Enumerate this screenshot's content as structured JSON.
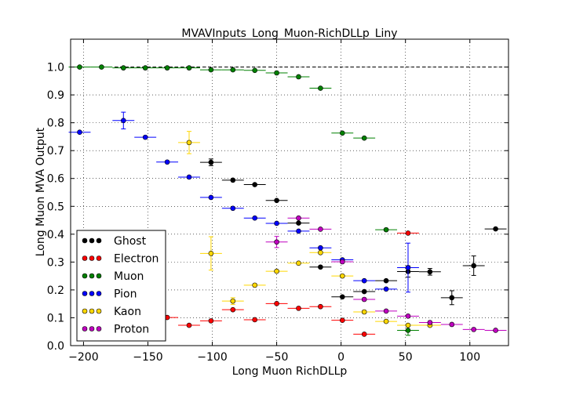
{
  "chart_data": {
    "type": "scatter",
    "title": "MVAVInputs_Long_Muon-RichDLLp_Liny",
    "xlabel": "Long Muon RichDLLp",
    "ylabel": "Long Muon MVA Output",
    "xlim": [
      -210,
      130
    ],
    "ylim": [
      0.0,
      1.1
    ],
    "xticks": [
      -200,
      -150,
      -100,
      -50,
      0,
      50,
      100
    ],
    "xtick_labels": [
      "−200",
      "−150",
      "−100",
      "−50",
      "0",
      "50",
      "100"
    ],
    "yticks": [
      0.0,
      0.1,
      0.2,
      0.3,
      0.4,
      0.5,
      0.6,
      0.7,
      0.8,
      0.9,
      1.0
    ],
    "ytick_labels": [
      "0.0",
      "0.1",
      "0.2",
      "0.3",
      "0.4",
      "0.5",
      "0.6",
      "0.7",
      "0.8",
      "0.9",
      "1.0"
    ],
    "grid": true,
    "reference_line_y": 1.0,
    "legend_position": "lower-left",
    "bin_half_width": 8.5,
    "series": [
      {
        "name": "Ghost",
        "color": "#000000",
        "points": [
          {
            "x": -101,
            "y": 0.658,
            "yerr": 0.012
          },
          {
            "x": -84,
            "y": 0.594,
            "yerr": 0.005
          },
          {
            "x": -67,
            "y": 0.578,
            "yerr": 0.005
          },
          {
            "x": -50,
            "y": 0.521,
            "yerr": 0.005
          },
          {
            "x": -33,
            "y": 0.44,
            "yerr": 0.005
          },
          {
            "x": -16,
            "y": 0.282,
            "yerr": 0.005
          },
          {
            "x": 1,
            "y": 0.175,
            "yerr": 0.005
          },
          {
            "x": 18,
            "y": 0.194,
            "yerr": 0.005
          },
          {
            "x": 35,
            "y": 0.233,
            "yerr": 0.005
          },
          {
            "x": 52,
            "y": 0.266,
            "yerr": 0.02
          },
          {
            "x": 69,
            "y": 0.265,
            "yerr": 0.012
          },
          {
            "x": 86,
            "y": 0.172,
            "yerr": 0.025
          },
          {
            "x": 103,
            "y": 0.287,
            "yerr": 0.035
          },
          {
            "x": 120,
            "y": 0.419,
            "yerr": 0.005
          }
        ]
      },
      {
        "name": "Electron",
        "color": "#ff0000",
        "points": [
          {
            "x": -135,
            "y": 0.101,
            "yerr": 0.003
          },
          {
            "x": -118,
            "y": 0.073,
            "yerr": 0.003
          },
          {
            "x": -101,
            "y": 0.089,
            "yerr": 0.003
          },
          {
            "x": -84,
            "y": 0.129,
            "yerr": 0.003
          },
          {
            "x": -67,
            "y": 0.093,
            "yerr": 0.003
          },
          {
            "x": -50,
            "y": 0.151,
            "yerr": 0.003
          },
          {
            "x": -33,
            "y": 0.134,
            "yerr": 0.003
          },
          {
            "x": -16,
            "y": 0.14,
            "yerr": 0.003
          },
          {
            "x": 1,
            "y": 0.091,
            "yerr": 0.003
          },
          {
            "x": 18,
            "y": 0.041,
            "yerr": 0.003
          },
          {
            "x": 52,
            "y": 0.404,
            "yerr": 0.003
          }
        ]
      },
      {
        "name": "Muon",
        "color": "#008000",
        "points": [
          {
            "x": -203,
            "y": 1.0,
            "yerr": 0.002
          },
          {
            "x": -186,
            "y": 1.0,
            "yerr": 0.002
          },
          {
            "x": -169,
            "y": 0.997,
            "yerr": 0.002
          },
          {
            "x": -152,
            "y": 0.997,
            "yerr": 0.002
          },
          {
            "x": -135,
            "y": 0.997,
            "yerr": 0.002
          },
          {
            "x": -118,
            "y": 0.997,
            "yerr": 0.002
          },
          {
            "x": -101,
            "y": 0.99,
            "yerr": 0.002
          },
          {
            "x": -84,
            "y": 0.99,
            "yerr": 0.002
          },
          {
            "x": -67,
            "y": 0.988,
            "yerr": 0.002
          },
          {
            "x": -50,
            "y": 0.979,
            "yerr": 0.002
          },
          {
            "x": -33,
            "y": 0.965,
            "yerr": 0.002
          },
          {
            "x": -16,
            "y": 0.924,
            "yerr": 0.002
          },
          {
            "x": 1,
            "y": 0.763,
            "yerr": 0.003
          },
          {
            "x": 18,
            "y": 0.745,
            "yerr": 0.003
          },
          {
            "x": 35,
            "y": 0.416,
            "yerr": 0.003
          },
          {
            "x": 52,
            "y": 0.055,
            "yerr": 0.018
          }
        ]
      },
      {
        "name": "Pion",
        "color": "#0000ff",
        "points": [
          {
            "x": -203,
            "y": 0.766,
            "yerr": 0.004
          },
          {
            "x": -169,
            "y": 0.808,
            "yerr": 0.03
          },
          {
            "x": -152,
            "y": 0.748,
            "yerr": 0.004
          },
          {
            "x": -135,
            "y": 0.659,
            "yerr": 0.004
          },
          {
            "x": -118,
            "y": 0.605,
            "yerr": 0.004
          },
          {
            "x": -101,
            "y": 0.532,
            "yerr": 0.004
          },
          {
            "x": -84,
            "y": 0.493,
            "yerr": 0.004
          },
          {
            "x": -67,
            "y": 0.458,
            "yerr": 0.004
          },
          {
            "x": -50,
            "y": 0.439,
            "yerr": 0.004
          },
          {
            "x": -33,
            "y": 0.411,
            "yerr": 0.004
          },
          {
            "x": -16,
            "y": 0.351,
            "yerr": 0.004
          },
          {
            "x": 1,
            "y": 0.308,
            "yerr": 0.004
          },
          {
            "x": 18,
            "y": 0.233,
            "yerr": 0.004
          },
          {
            "x": 35,
            "y": 0.203,
            "yerr": 0.004
          },
          {
            "x": 52,
            "y": 0.28,
            "yerr": 0.088
          }
        ]
      },
      {
        "name": "Kaon",
        "color": "#ffd700",
        "points": [
          {
            "x": -118,
            "y": 0.729,
            "yerr": 0.04
          },
          {
            "x": -101,
            "y": 0.331,
            "yerr": 0.06
          },
          {
            "x": -84,
            "y": 0.16,
            "yerr": 0.012
          },
          {
            "x": -67,
            "y": 0.217,
            "yerr": 0.006
          },
          {
            "x": -50,
            "y": 0.267,
            "yerr": 0.005
          },
          {
            "x": -33,
            "y": 0.296,
            "yerr": 0.005
          },
          {
            "x": -16,
            "y": 0.334,
            "yerr": 0.005
          },
          {
            "x": 1,
            "y": 0.25,
            "yerr": 0.005
          },
          {
            "x": 18,
            "y": 0.121,
            "yerr": 0.005
          },
          {
            "x": 35,
            "y": 0.087,
            "yerr": 0.005
          },
          {
            "x": 52,
            "y": 0.073,
            "yerr": 0.005
          },
          {
            "x": 69,
            "y": 0.073,
            "yerr": 0.005
          }
        ]
      },
      {
        "name": "Proton",
        "color": "#bf00bf",
        "points": [
          {
            "x": -50,
            "y": 0.372,
            "yerr": 0.02
          },
          {
            "x": -33,
            "y": 0.458,
            "yerr": 0.006
          },
          {
            "x": -16,
            "y": 0.418,
            "yerr": 0.004
          },
          {
            "x": 1,
            "y": 0.301,
            "yerr": 0.004
          },
          {
            "x": 18,
            "y": 0.166,
            "yerr": 0.004
          },
          {
            "x": 35,
            "y": 0.124,
            "yerr": 0.004
          },
          {
            "x": 52,
            "y": 0.106,
            "yerr": 0.004
          },
          {
            "x": 69,
            "y": 0.083,
            "yerr": 0.004
          },
          {
            "x": 86,
            "y": 0.076,
            "yerr": 0.004
          },
          {
            "x": 103,
            "y": 0.058,
            "yerr": 0.004
          },
          {
            "x": 120,
            "y": 0.055,
            "yerr": 0.004
          }
        ]
      }
    ]
  }
}
